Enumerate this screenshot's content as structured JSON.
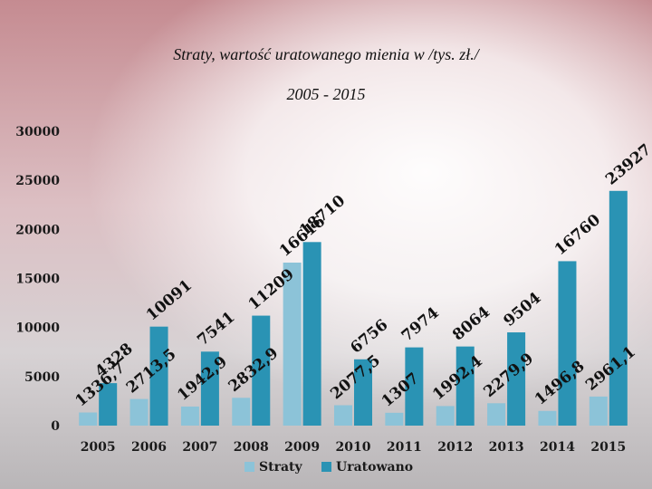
{
  "chart_data": {
    "type": "bar",
    "title": "Straty, wartość uratowanego mienia w /tys. zł./",
    "subtitle": "2005 - 2015",
    "categories": [
      "2005",
      "2006",
      "2007",
      "2008",
      "2009",
      "2010",
      "2011",
      "2012",
      "2013",
      "2014",
      "2015"
    ],
    "series": [
      {
        "name": "Straty",
        "color": "#8cc3d8",
        "values": [
          1336.7,
          2713.5,
          1942.9,
          2832.9,
          16616,
          2077.5,
          1307,
          1992.4,
          2279.9,
          1496.8,
          2961.1
        ],
        "labels": [
          "1336,7",
          "2713,5",
          "1942,9",
          "2832,9",
          "16616",
          "2077,5",
          "1307",
          "1992,4",
          "2279,9",
          "1496,8",
          "2961,1"
        ]
      },
      {
        "name": "Uratowano",
        "color": "#2a93b4",
        "values": [
          4328,
          10091,
          7541,
          11209,
          18710,
          6756,
          7974,
          8064,
          9504,
          16760,
          23927
        ],
        "labels": [
          "4328",
          "10091",
          "7541",
          "11209",
          "18710",
          "6756",
          "7974",
          "8064",
          "9504",
          "16760",
          "23927"
        ]
      }
    ],
    "yticks": [
      "0",
      "5000",
      "10000",
      "15000",
      "20000",
      "25000",
      "30000"
    ],
    "ylim": [
      0,
      30000
    ],
    "legend": "bottom",
    "grid": false
  }
}
